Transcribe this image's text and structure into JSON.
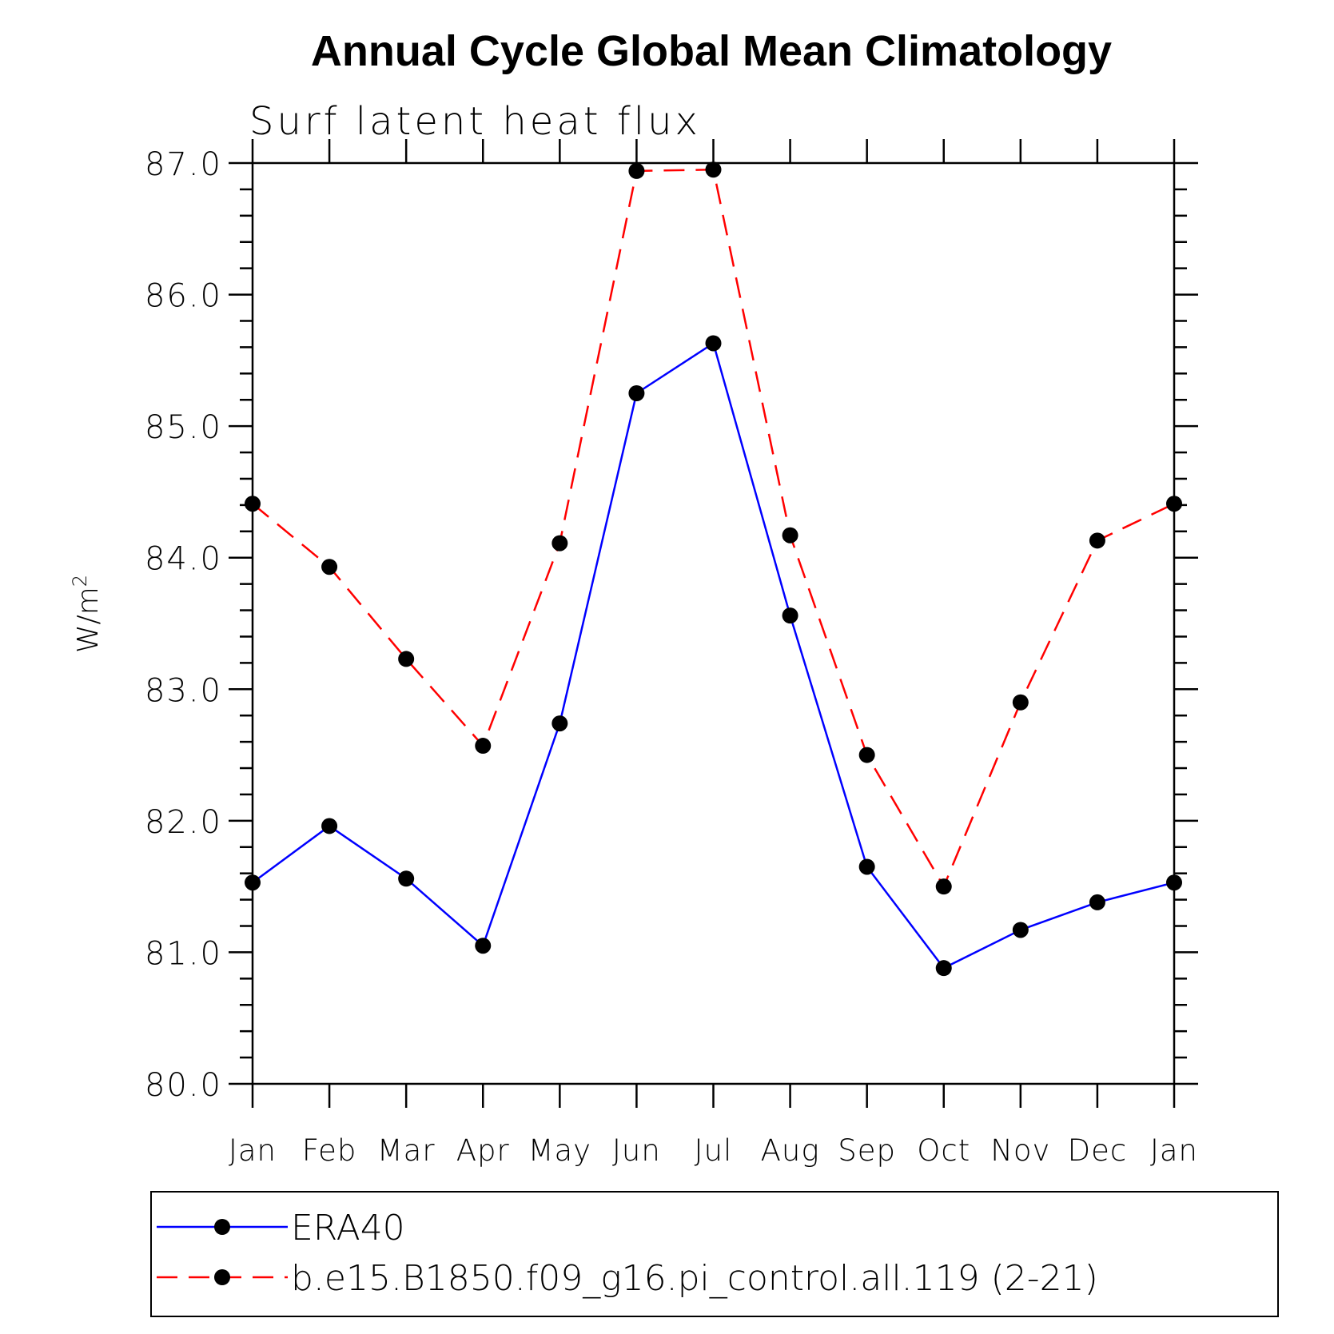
{
  "chart_data": {
    "type": "line",
    "title": "Annual Cycle Global Mean Climatology",
    "subtitle": "Surf latent heat flux",
    "ylabel_main": "W/m",
    "ylabel_sup": "2",
    "ylim": [
      80.0,
      87.0
    ],
    "yticks": [
      "80.0",
      "81.0",
      "82.0",
      "83.0",
      "84.0",
      "85.0",
      "86.0",
      "87.0"
    ],
    "categories": [
      "Jan",
      "Feb",
      "Mar",
      "Apr",
      "May",
      "Jun",
      "Jul",
      "Aug",
      "Sep",
      "Oct",
      "Nov",
      "Dec",
      "Jan"
    ],
    "series": [
      {
        "name": "ERA40",
        "color": "#0000ff",
        "dash": "solid",
        "values": [
          81.53,
          81.96,
          81.56,
          81.05,
          82.74,
          85.25,
          85.63,
          83.56,
          81.65,
          80.88,
          81.17,
          81.38,
          81.53
        ]
      },
      {
        "name": "b.e15.B1850.f09_g16.pi_control.all.119 (2-21)",
        "color": "#ff0000",
        "dash": "dashed",
        "values": [
          84.41,
          83.93,
          83.23,
          82.57,
          84.11,
          86.94,
          86.95,
          84.17,
          82.5,
          81.5,
          82.9,
          84.13,
          84.41
        ]
      }
    ]
  }
}
